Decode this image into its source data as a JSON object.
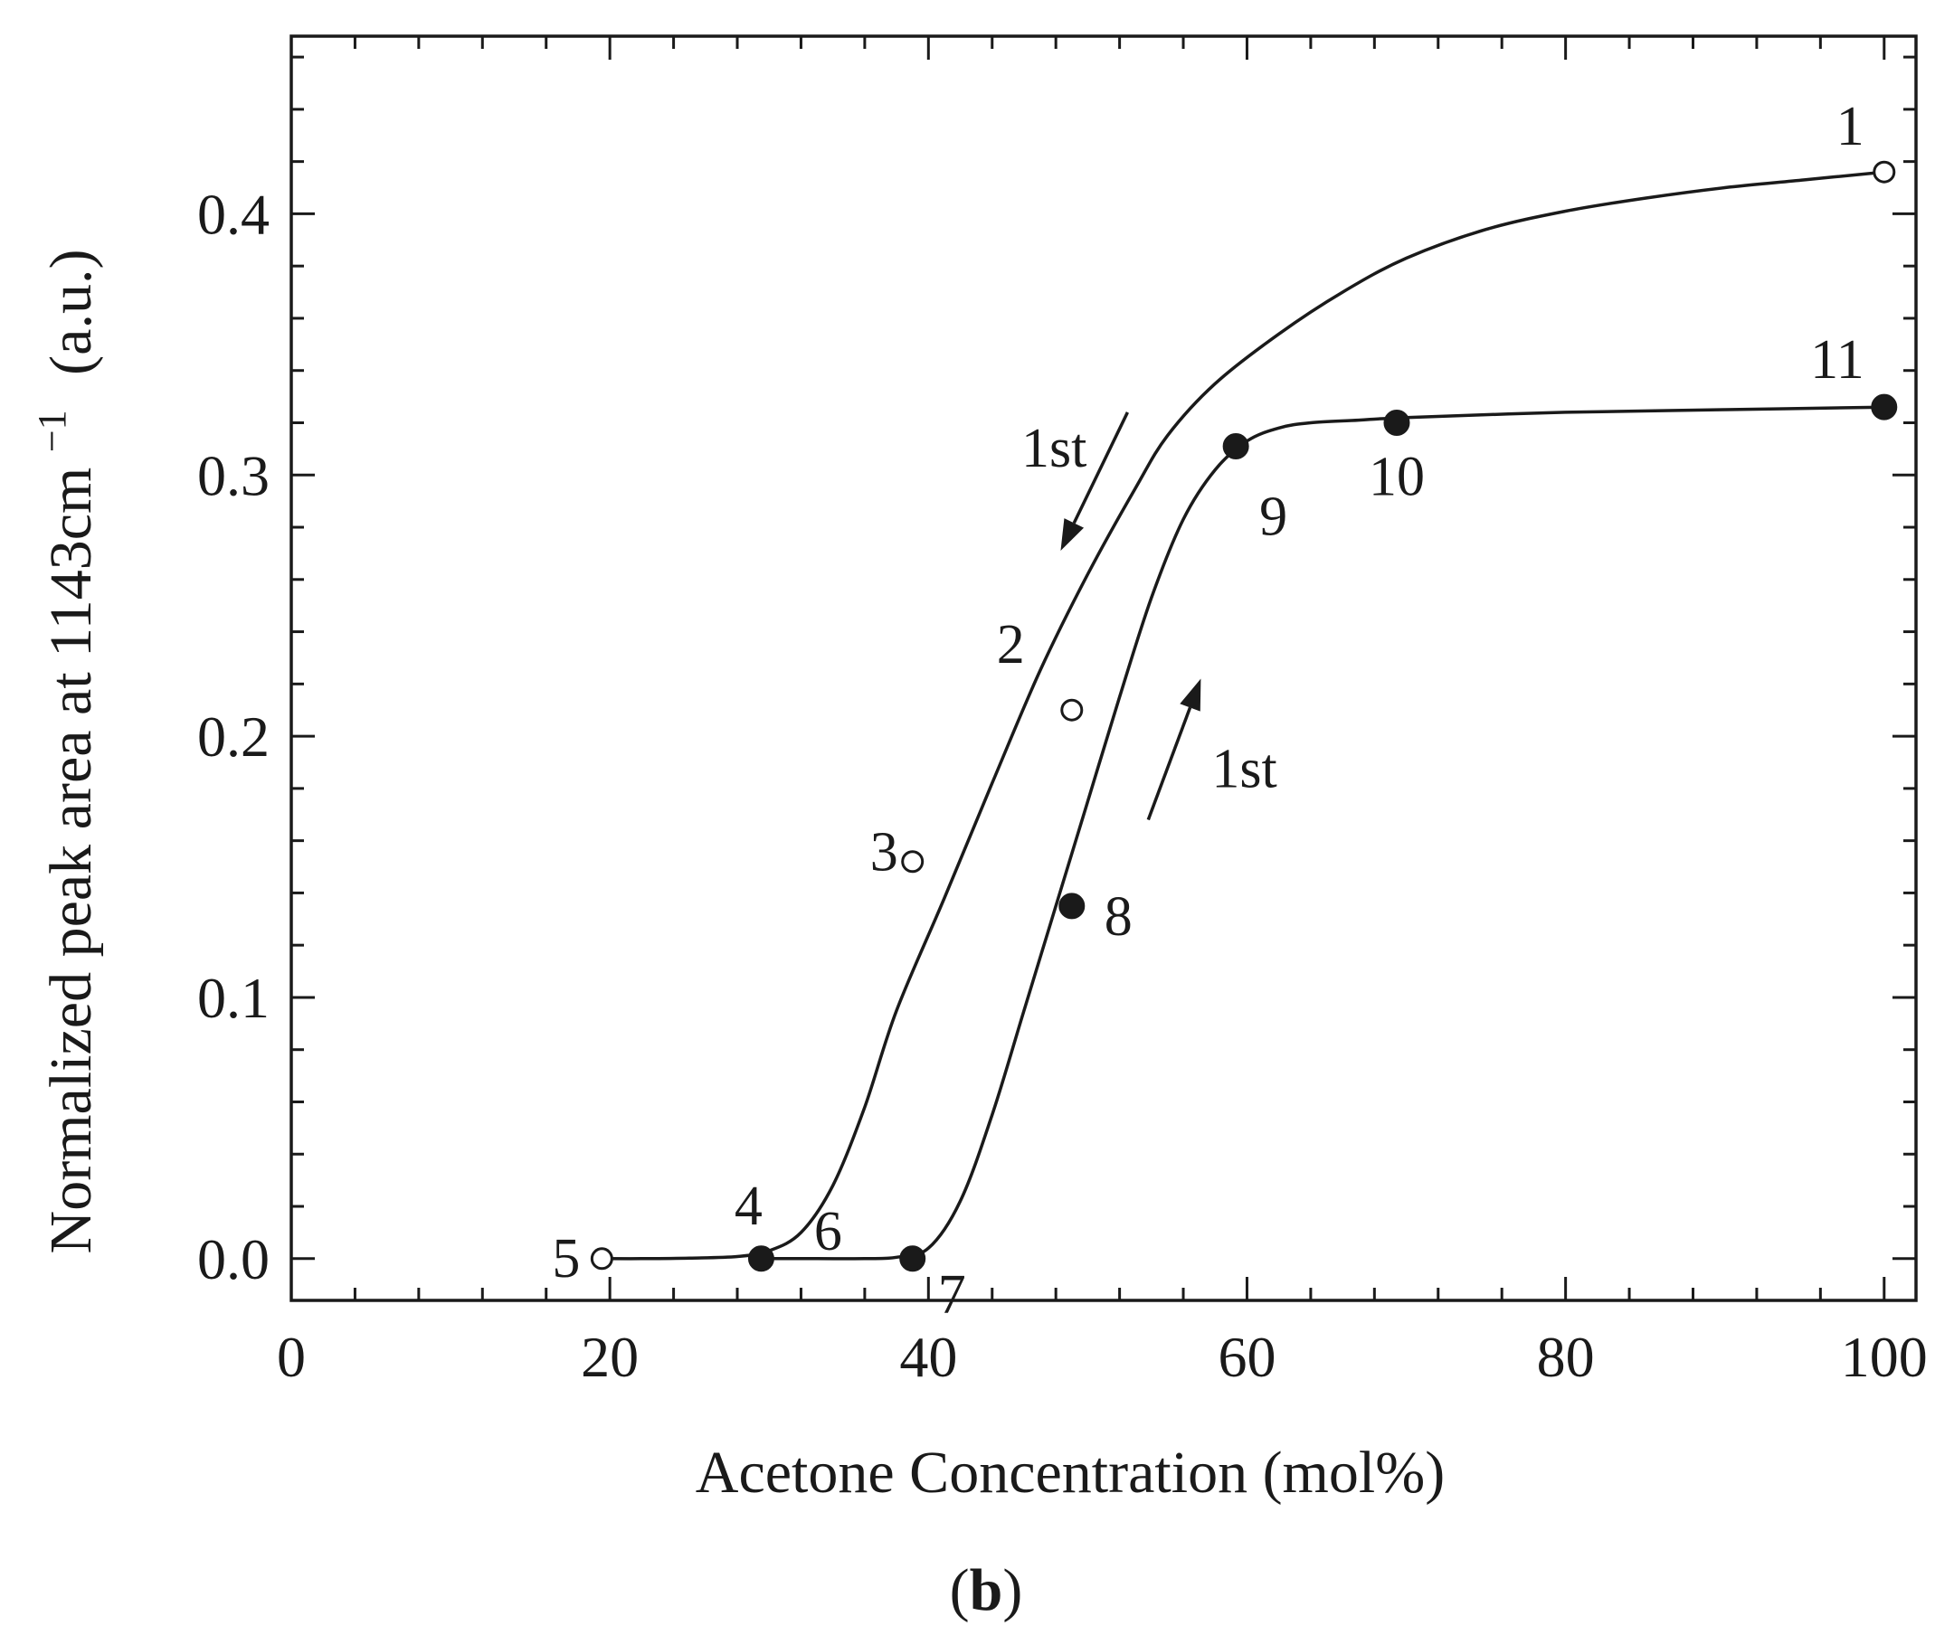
{
  "chart_data": {
    "type": "scatter",
    "xlabel": "Acetone Concentration (mol%)",
    "ylabel": "Normalized peak area at 1143cm",
    "ylabel_sup": "−1",
    "ylabel_unit": "(a.u.)",
    "panel_label_open": "(",
    "panel_label_letter": "b",
    "panel_label_close": ")",
    "xlim": [
      0,
      102
    ],
    "ylim": [
      -0.016,
      0.468
    ],
    "x_ticks": [
      0,
      20,
      40,
      60,
      80,
      100
    ],
    "x_tick_labels": [
      "0",
      "20",
      "40",
      "60",
      "80",
      "100"
    ],
    "y_ticks": [
      0.0,
      0.1,
      0.2,
      0.3,
      0.4
    ],
    "y_tick_labels": [
      "0.0",
      "0.1",
      "0.2",
      "0.3",
      "0.4"
    ],
    "grid": false,
    "legend": "none",
    "series": [
      {
        "marker": "open-circle",
        "points": [
          {
            "x": 100,
            "y": 0.416,
            "label": "1"
          },
          {
            "x": 49,
            "y": 0.21,
            "label": "2"
          },
          {
            "x": 39,
            "y": 0.152,
            "label": "3"
          },
          {
            "x": 19.5,
            "y": 0.0,
            "label": "5"
          }
        ],
        "curve": [
          [
            100,
            0.416
          ],
          [
            95,
            0.413
          ],
          [
            90,
            0.41
          ],
          [
            85,
            0.406
          ],
          [
            80,
            0.401
          ],
          [
            75,
            0.394
          ],
          [
            70,
            0.383
          ],
          [
            66,
            0.37
          ],
          [
            62,
            0.354
          ],
          [
            58,
            0.335
          ],
          [
            55,
            0.315
          ],
          [
            53,
            0.295
          ],
          [
            50,
            0.262
          ],
          [
            47,
            0.225
          ],
          [
            44,
            0.182
          ],
          [
            41,
            0.138
          ],
          [
            38,
            0.095
          ],
          [
            36,
            0.058
          ],
          [
            34,
            0.028
          ],
          [
            32,
            0.01
          ],
          [
            30,
            0.003
          ],
          [
            28,
            0.0008
          ],
          [
            25,
            0.0002
          ],
          [
            22,
            0.0
          ],
          [
            19.5,
            0.0
          ]
        ]
      },
      {
        "marker": "filled-circle",
        "points": [
          {
            "x": 29.5,
            "y": 0.0,
            "label": "4"
          },
          {
            "x": 39,
            "y": 0.0,
            "label": "7"
          },
          {
            "x": 49,
            "y": 0.135,
            "label": "8"
          },
          {
            "x": 59.3,
            "y": 0.311,
            "label": "9"
          },
          {
            "x": 69.4,
            "y": 0.32,
            "label": "10"
          },
          {
            "x": 100,
            "y": 0.326,
            "label": "11"
          }
        ],
        "curve": [
          [
            29.5,
            0.0
          ],
          [
            33,
            0.0
          ],
          [
            36,
            0.0
          ],
          [
            38,
            0.0005
          ],
          [
            40,
            0.004
          ],
          [
            42,
            0.022
          ],
          [
            44,
            0.055
          ],
          [
            46,
            0.095
          ],
          [
            48,
            0.135
          ],
          [
            50,
            0.175
          ],
          [
            52,
            0.215
          ],
          [
            54,
            0.253
          ],
          [
            56,
            0.283
          ],
          [
            58,
            0.302
          ],
          [
            60,
            0.313
          ],
          [
            62,
            0.318
          ],
          [
            64,
            0.32
          ],
          [
            67,
            0.321
          ],
          [
            70,
            0.322
          ],
          [
            80,
            0.324
          ],
          [
            90,
            0.325
          ],
          [
            100,
            0.326
          ]
        ]
      }
    ],
    "point_label_6": "6",
    "annotations": [
      {
        "text": "1st",
        "arrow": "down",
        "from": [
          52.5,
          0.324
        ],
        "to": [
          48.3,
          0.271
        ]
      },
      {
        "text": "1st",
        "arrow": "up",
        "from": [
          53.8,
          0.168
        ],
        "to": [
          57.1,
          0.222
        ]
      }
    ]
  }
}
